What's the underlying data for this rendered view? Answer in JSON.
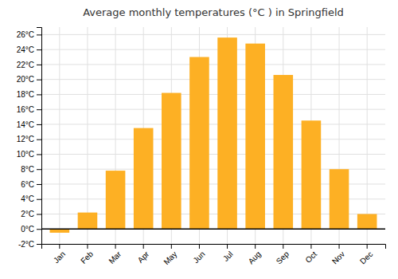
{
  "chart_data": {
    "type": "bar",
    "title": "Average monthly temperatures (°C ) in Springfield",
    "categories": [
      "Jan",
      "Feb",
      "Mar",
      "Apr",
      "May",
      "Jun",
      "Jul",
      "Aug",
      "Sep",
      "Oct",
      "Nov",
      "Dec"
    ],
    "values": [
      -0.5,
      2.2,
      7.8,
      13.5,
      18.2,
      23.0,
      25.6,
      24.8,
      20.6,
      14.5,
      8.0,
      2.0
    ],
    "color": "#FDB024",
    "ylim": [
      -2,
      27
    ],
    "yticks": [
      {
        "value": -2,
        "label": "-2°C"
      },
      {
        "value": 0,
        "label": "0°C"
      },
      {
        "value": 2,
        "label": "2°C"
      },
      {
        "value": 4,
        "label": "4°C"
      },
      {
        "value": 6,
        "label": "6°C"
      },
      {
        "value": 8,
        "label": "8°C"
      },
      {
        "value": 10,
        "label": "10°C"
      },
      {
        "value": 12,
        "label": "12°C"
      },
      {
        "value": 14,
        "label": "14°C"
      },
      {
        "value": 16,
        "label": "16°C"
      },
      {
        "value": 18,
        "label": "18°C"
      },
      {
        "value": 20,
        "label": "20°C"
      },
      {
        "value": 22,
        "label": "22°C"
      },
      {
        "value": 24,
        "label": "24°C"
      },
      {
        "value": 26,
        "label": "26°C"
      }
    ],
    "grid": true
  }
}
